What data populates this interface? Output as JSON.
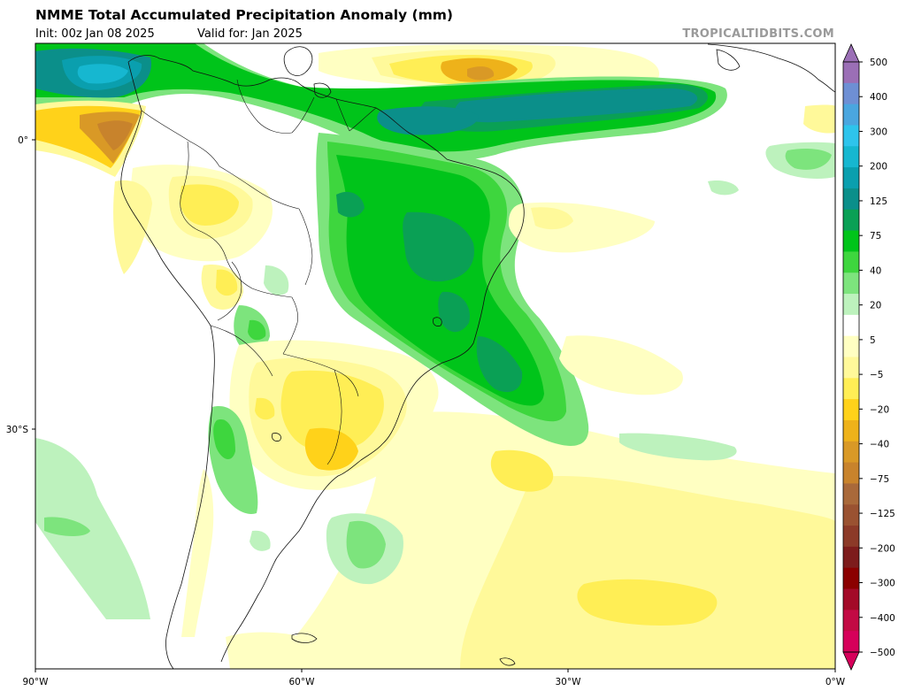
{
  "header": {
    "title": "NMME Total Accumulated Precipitation Anomaly (mm)",
    "init": "Init: 00z Jan 08 2025",
    "valid": "Valid for: Jan 2025",
    "credit": "TROPICALTIDBITS.COM"
  },
  "map": {
    "region": "South America",
    "x_axis_labels": [
      "90°W",
      "60°W",
      "30°W",
      "0°W"
    ],
    "y_axis_labels": [
      "0°",
      "30°S"
    ],
    "lon_range": [
      -90,
      0
    ],
    "lat_range": [
      10,
      -55
    ]
  },
  "colorbar": {
    "labels": [
      "500",
      "400",
      "300",
      "200",
      "125",
      "75",
      "40",
      "20",
      "5",
      "−5",
      "−20",
      "−40",
      "−75",
      "−125",
      "−200",
      "−300",
      "−400",
      "−500"
    ],
    "colors": [
      "#9b6fb6",
      "#6e8fd4",
      "#4aa6df",
      "#2ec4ec",
      "#16b7d0",
      "#0a9fae",
      "#0b8f8a",
      "#0aa055",
      "#00c41a",
      "#3ed63e",
      "#7de47d",
      "#bdf2bd",
      "#ffffff",
      "#ffffc2",
      "#fff99a",
      "#ffee55",
      "#ffd21a",
      "#eeb21a",
      "#d99926",
      "#c8832c",
      "#a9693a",
      "#9a5231",
      "#8c3a28",
      "#7d1c1c",
      "#8b0000",
      "#a30a28",
      "#c20a44",
      "#d6005a"
    ],
    "top_color": "#9b6fb6",
    "bottom_color": "#d6005a"
  }
}
